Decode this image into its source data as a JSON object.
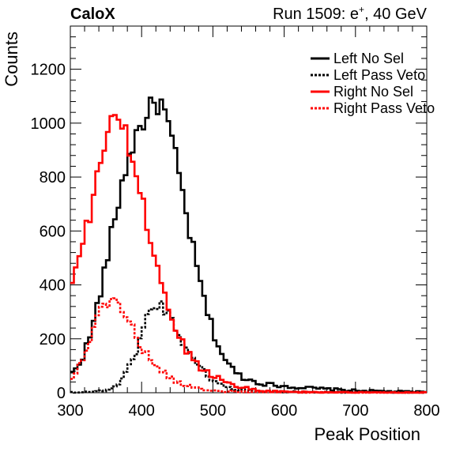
{
  "header": {
    "experiment": "CaloX",
    "run_prefix": "Run 1509: e",
    "run_particle_sup": "+",
    "run_suffix": ", 40 GeV"
  },
  "chart_data": {
    "type": "histogram",
    "title": "",
    "xlabel": "Peak Position",
    "ylabel": "Counts",
    "xlim": [
      300,
      800
    ],
    "ylim": [
      0,
      1360
    ],
    "xticks": [
      300,
      400,
      500,
      600,
      700,
      800
    ],
    "yticks": [
      0,
      200,
      400,
      600,
      800,
      1000,
      1200
    ],
    "xtick_labels": [
      "300",
      "400",
      "500",
      "600",
      "700",
      "800"
    ],
    "ytick_labels": [
      "0",
      "200",
      "400",
      "600",
      "800",
      "1000",
      "1200"
    ],
    "legend_position": "top-right",
    "grid": false,
    "series": [
      {
        "name": "Left No Sel",
        "color": "#000000",
        "line_style": "solid",
        "points": [
          [
            300,
            60
          ],
          [
            310,
            100
          ],
          [
            320,
            150
          ],
          [
            330,
            230
          ],
          [
            340,
            350
          ],
          [
            350,
            470
          ],
          [
            360,
            620
          ],
          [
            370,
            740
          ],
          [
            380,
            860
          ],
          [
            390,
            940
          ],
          [
            400,
            1000
          ],
          [
            410,
            1040
          ],
          [
            420,
            1080
          ],
          [
            430,
            1060
          ],
          [
            440,
            960
          ],
          [
            450,
            840
          ],
          [
            460,
            700
          ],
          [
            470,
            560
          ],
          [
            480,
            430
          ],
          [
            490,
            320
          ],
          [
            500,
            230
          ],
          [
            510,
            160
          ],
          [
            520,
            110
          ],
          [
            530,
            80
          ],
          [
            540,
            60
          ],
          [
            550,
            50
          ],
          [
            560,
            40
          ],
          [
            570,
            35
          ],
          [
            580,
            30
          ],
          [
            600,
            25
          ],
          [
            620,
            20
          ],
          [
            650,
            15
          ],
          [
            700,
            8
          ],
          [
            750,
            5
          ],
          [
            800,
            3
          ]
        ]
      },
      {
        "name": "Left Pass Veto",
        "color": "#000000",
        "line_style": "dotted",
        "points": [
          [
            300,
            2
          ],
          [
            320,
            3
          ],
          [
            340,
            5
          ],
          [
            350,
            10
          ],
          [
            360,
            20
          ],
          [
            370,
            40
          ],
          [
            380,
            80
          ],
          [
            390,
            140
          ],
          [
            400,
            220
          ],
          [
            410,
            300
          ],
          [
            420,
            330
          ],
          [
            430,
            320
          ],
          [
            440,
            280
          ],
          [
            450,
            230
          ],
          [
            460,
            180
          ],
          [
            470,
            140
          ],
          [
            480,
            100
          ],
          [
            490,
            70
          ],
          [
            500,
            50
          ],
          [
            510,
            30
          ],
          [
            520,
            20
          ],
          [
            530,
            14
          ],
          [
            540,
            10
          ],
          [
            550,
            8
          ],
          [
            570,
            5
          ],
          [
            600,
            4
          ],
          [
            650,
            2
          ],
          [
            700,
            2
          ],
          [
            750,
            1
          ],
          [
            800,
            1
          ]
        ]
      },
      {
        "name": "Right No Sel",
        "color": "#ff0000",
        "line_style": "solid",
        "points": [
          [
            300,
            380
          ],
          [
            310,
            480
          ],
          [
            320,
            580
          ],
          [
            330,
            680
          ],
          [
            340,
            820
          ],
          [
            350,
            960
          ],
          [
            360,
            1050
          ],
          [
            370,
            1010
          ],
          [
            380,
            930
          ],
          [
            390,
            830
          ],
          [
            400,
            720
          ],
          [
            410,
            600
          ],
          [
            420,
            490
          ],
          [
            430,
            380
          ],
          [
            440,
            290
          ],
          [
            450,
            220
          ],
          [
            460,
            170
          ],
          [
            470,
            130
          ],
          [
            480,
            100
          ],
          [
            490,
            80
          ],
          [
            500,
            65
          ],
          [
            510,
            50
          ],
          [
            520,
            40
          ],
          [
            530,
            30
          ],
          [
            540,
            22
          ],
          [
            550,
            15
          ],
          [
            560,
            10
          ],
          [
            580,
            6
          ],
          [
            600,
            4
          ],
          [
            650,
            2
          ],
          [
            700,
            1
          ],
          [
            800,
            1
          ]
        ]
      },
      {
        "name": "Right Pass Veto",
        "color": "#ff0000",
        "line_style": "dotted",
        "points": [
          [
            300,
            40
          ],
          [
            310,
            90
          ],
          [
            320,
            150
          ],
          [
            330,
            220
          ],
          [
            340,
            290
          ],
          [
            350,
            330
          ],
          [
            360,
            350
          ],
          [
            370,
            330
          ],
          [
            380,
            280
          ],
          [
            390,
            220
          ],
          [
            400,
            170
          ],
          [
            410,
            130
          ],
          [
            420,
            100
          ],
          [
            430,
            75
          ],
          [
            440,
            55
          ],
          [
            450,
            40
          ],
          [
            460,
            30
          ],
          [
            470,
            22
          ],
          [
            480,
            15
          ],
          [
            490,
            10
          ],
          [
            500,
            7
          ],
          [
            520,
            5
          ],
          [
            550,
            3
          ],
          [
            600,
            2
          ],
          [
            700,
            1
          ],
          [
            800,
            1
          ]
        ]
      }
    ]
  }
}
